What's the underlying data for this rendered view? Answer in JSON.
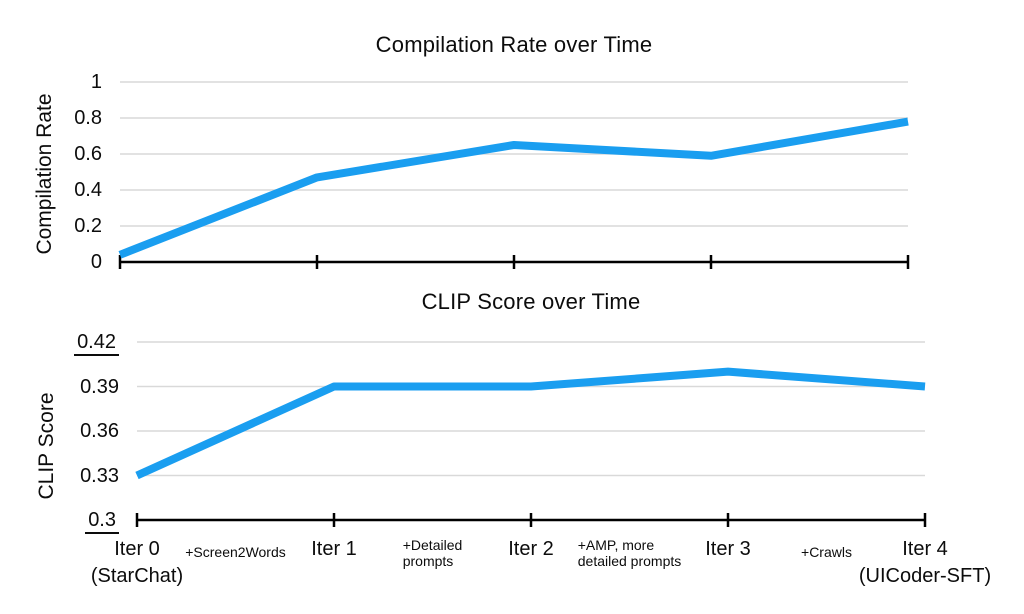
{
  "figure": {
    "background": "#ffffff",
    "text_color": "#0c0c0c",
    "line_color": "#1A9EF0",
    "grid_color": "#d9d9d9",
    "axis_color": "#000000"
  },
  "chart_data": [
    {
      "type": "line",
      "title": "Compilation Rate over Time",
      "ylabel": "Compilation Rate",
      "categories": [
        "Iter 0 (StarChat)",
        "Iter 1",
        "Iter 2",
        "Iter 3",
        "Iter 4 (UICoder-SFT)"
      ],
      "values": [
        0.04,
        0.47,
        0.65,
        0.59,
        0.78
      ],
      "ylim": [
        0,
        1
      ],
      "yticks": [
        0,
        0.2,
        0.4,
        0.6,
        0.8,
        1
      ],
      "underlined_yticks": [],
      "grid": true,
      "legend": false
    },
    {
      "type": "line",
      "title": "CLIP Score over Time",
      "ylabel": "CLIP Score",
      "categories": [
        "Iter 0 (StarChat)",
        "Iter 1",
        "Iter 2",
        "Iter 3",
        "Iter 4 (UICoder-SFT)"
      ],
      "values": [
        0.33,
        0.39,
        0.39,
        0.4,
        0.39
      ],
      "ylim": [
        0.3,
        0.42
      ],
      "yticks": [
        0.3,
        0.33,
        0.36,
        0.39,
        0.42
      ],
      "underlined_yticks": [
        "0.3",
        "0.42"
      ],
      "grid": true,
      "legend": false
    }
  ],
  "x_axis": {
    "tick_labels": [
      {
        "label": "Iter 0",
        "sublabel": "(StarChat)"
      },
      {
        "label": "Iter 1",
        "sublabel": ""
      },
      {
        "label": "Iter 2",
        "sublabel": ""
      },
      {
        "label": "Iter 3",
        "sublabel": ""
      },
      {
        "label": "Iter 4",
        "sublabel": "(UICoder-SFT)"
      }
    ],
    "between_labels": [
      "+Screen2Words",
      "+Detailed\nprompts",
      "+AMP, more\ndetailed prompts",
      "+Crawls"
    ]
  }
}
